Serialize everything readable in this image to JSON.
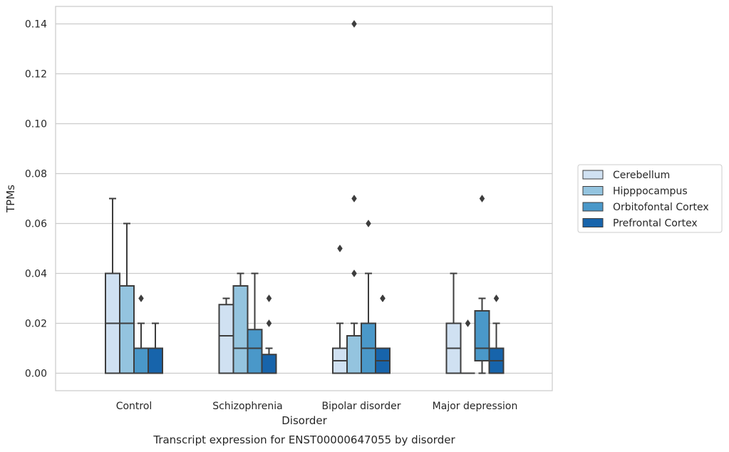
{
  "chart_data": {
    "type": "box",
    "xlabel": "Disorder",
    "ylabel": "TPMs",
    "caption": "Transcript expression for ENST00000647055 by disorder",
    "ylim": [
      -0.007,
      0.147
    ],
    "yticks": [
      0.0,
      0.02,
      0.04,
      0.06,
      0.08,
      0.1,
      0.12,
      0.14
    ],
    "ytick_labels": [
      "0.00",
      "0.02",
      "0.04",
      "0.06",
      "0.08",
      "0.10",
      "0.12",
      "0.14"
    ],
    "grid": "horizontal",
    "legend_position": "right",
    "categories": [
      "Control",
      "Schizophrenia",
      "Bipolar disorder",
      "Major depression"
    ],
    "series": [
      {
        "name": "Cerebellum",
        "color": "#d0e1f2",
        "boxes": [
          {
            "whislo": 0.0,
            "q1": 0.0,
            "med": 0.02,
            "q3": 0.04,
            "whishi": 0.07,
            "fliers": []
          },
          {
            "whislo": 0.0,
            "q1": 0.0,
            "med": 0.015,
            "q3": 0.0275,
            "whishi": 0.03,
            "fliers": []
          },
          {
            "whislo": 0.0,
            "q1": 0.0,
            "med": 0.005,
            "q3": 0.01,
            "whishi": 0.02,
            "fliers": [
              0.05
            ]
          },
          {
            "whislo": 0.0,
            "q1": 0.0,
            "med": 0.01,
            "q3": 0.02,
            "whishi": 0.04,
            "fliers": []
          }
        ]
      },
      {
        "name": "Hipppocampus",
        "color": "#94c4df",
        "boxes": [
          {
            "whislo": 0.0,
            "q1": 0.0,
            "med": 0.02,
            "q3": 0.035,
            "whishi": 0.06,
            "fliers": []
          },
          {
            "whislo": 0.0,
            "q1": 0.0,
            "med": 0.01,
            "q3": 0.035,
            "whishi": 0.04,
            "fliers": []
          },
          {
            "whislo": 0.0,
            "q1": 0.0,
            "med": 0.0,
            "q3": 0.015,
            "whishi": 0.02,
            "fliers": [
              0.04,
              0.07,
              0.14
            ]
          },
          {
            "whislo": 0.0,
            "q1": 0.0,
            "med": 0.0,
            "q3": 0.0,
            "whishi": 0.0,
            "fliers": [
              0.02
            ]
          }
        ]
      },
      {
        "name": "Orbitofontal Cortex",
        "color": "#4a98c9",
        "boxes": [
          {
            "whislo": 0.0,
            "q1": 0.0,
            "med": 0.0,
            "q3": 0.01,
            "whishi": 0.02,
            "fliers": [
              0.03
            ]
          },
          {
            "whislo": 0.0,
            "q1": 0.0,
            "med": 0.01,
            "q3": 0.0175,
            "whishi": 0.04,
            "fliers": []
          },
          {
            "whislo": 0.0,
            "q1": 0.0,
            "med": 0.01,
            "q3": 0.02,
            "whishi": 0.04,
            "fliers": [
              0.06
            ]
          },
          {
            "whislo": 0.0,
            "q1": 0.005,
            "med": 0.01,
            "q3": 0.025,
            "whishi": 0.03,
            "fliers": [
              0.07
            ]
          }
        ]
      },
      {
        "name": "Prefrontal Cortex",
        "color": "#1764ab",
        "boxes": [
          {
            "whislo": 0.0,
            "q1": 0.0,
            "med": 0.0,
            "q3": 0.01,
            "whishi": 0.02,
            "fliers": []
          },
          {
            "whislo": 0.0,
            "q1": 0.0,
            "med": 0.0,
            "q3": 0.0075,
            "whishi": 0.01,
            "fliers": [
              0.02,
              0.03
            ]
          },
          {
            "whislo": 0.0,
            "q1": 0.0,
            "med": 0.005,
            "q3": 0.01,
            "whishi": 0.01,
            "fliers": [
              0.03,
              0.03
            ]
          },
          {
            "whislo": 0.0,
            "q1": 0.0,
            "med": 0.005,
            "q3": 0.01,
            "whishi": 0.02,
            "fliers": [
              0.03
            ]
          }
        ]
      }
    ]
  }
}
